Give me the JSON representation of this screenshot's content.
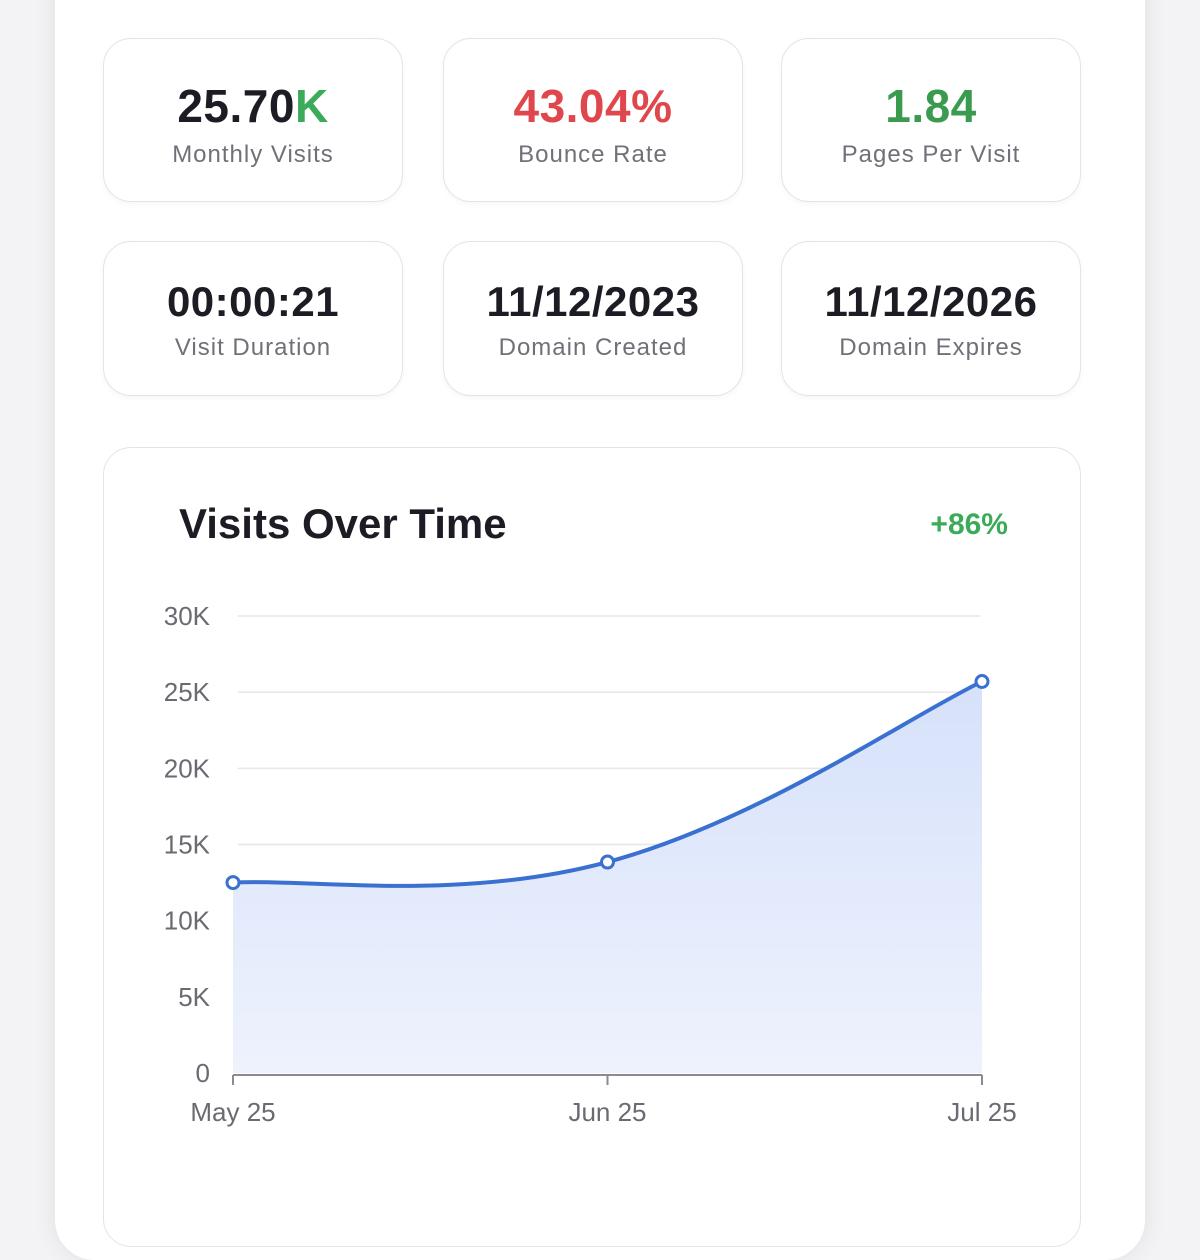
{
  "stats": [
    {
      "value": "25.70",
      "suffix": "K",
      "label": "Monthly Visits",
      "color": "#1c1c24"
    },
    {
      "value": "43.04%",
      "suffix": "",
      "label": "Bounce Rate",
      "color": "#e0474c"
    },
    {
      "value": "1.84",
      "suffix": "",
      "label": "Pages Per Visit",
      "color": "#3a9a4e"
    },
    {
      "value": "00:00:21",
      "suffix": "",
      "label": "Visit Duration",
      "color": "#1c1c24"
    },
    {
      "value": "11/12/2023",
      "suffix": "",
      "label": "Domain Created",
      "color": "#1c1c24"
    },
    {
      "value": "11/12/2026",
      "suffix": "",
      "label": "Domain Expires",
      "color": "#1c1c24"
    }
  ],
  "chart_data": {
    "type": "area",
    "title": "Visits Over Time",
    "change": "+86%",
    "categories": [
      "May 25",
      "Jun 25",
      "Jul 25"
    ],
    "values": [
      12500,
      13850,
      25700
    ],
    "ylim": [
      0,
      30000
    ],
    "yticks": [
      0,
      5000,
      10000,
      15000,
      20000,
      25000,
      30000
    ],
    "ytick_labels": [
      "0",
      "5K",
      "10K",
      "15K",
      "20K",
      "25K",
      "30K"
    ],
    "grid": true,
    "line_color": "#3a70d0",
    "fill_color": "#dde6fb"
  }
}
